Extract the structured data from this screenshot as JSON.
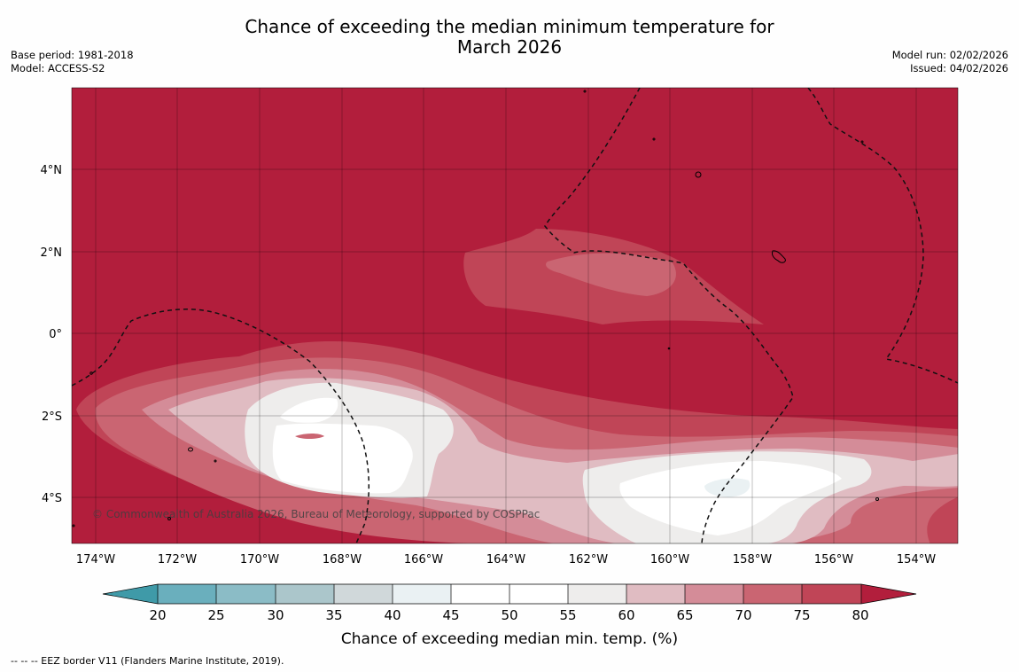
{
  "title_line1": "Chance of exceeding the median minimum temperature for",
  "title_line2": "March 2026",
  "base_period": "Base period: 1981-2018",
  "model": "Model: ACCESS-S2",
  "model_run": "Model run: 02/02/2026",
  "issued": "Issued: 04/02/2026",
  "copyright": "© Commonwealth of Australia 2026, Bureau of Meteorology, supported by COSPPac",
  "lat_labels": [
    "4°N",
    "2°N",
    "0°",
    "2°S",
    "4°S"
  ],
  "lon_labels": [
    "174°W",
    "172°W",
    "170°W",
    "168°W",
    "166°W",
    "164°W",
    "162°W",
    "160°W",
    "158°W",
    "156°W",
    "154°W"
  ],
  "colorbar": {
    "ticks": [
      "20",
      "25",
      "30",
      "35",
      "40",
      "45",
      "50",
      "55",
      "60",
      "65",
      "70",
      "75",
      "80"
    ],
    "label": "Chance of exceeding median min. temp. (%)",
    "colors": {
      "under": "#3f9aa8",
      "c20_25": "#6aafbd",
      "c25_30": "#8bbcc6",
      "c30_35": "#abc6cb",
      "c35_40": "#d0d8da",
      "c40_45": "#eaf1f3",
      "c45_50": "#ffffff",
      "c50_55": "#ffffff",
      "c55_60": "#eeedec",
      "c60_65": "#e0bcc2",
      "c65_70": "#d48c98",
      "c70_75": "#ca6572",
      "c75_80": "#c04557",
      "over": "#b21e3c"
    }
  },
  "footer": "--  --  -- EEZ border V11 (Flanders Marine Institute, 2019)."
}
